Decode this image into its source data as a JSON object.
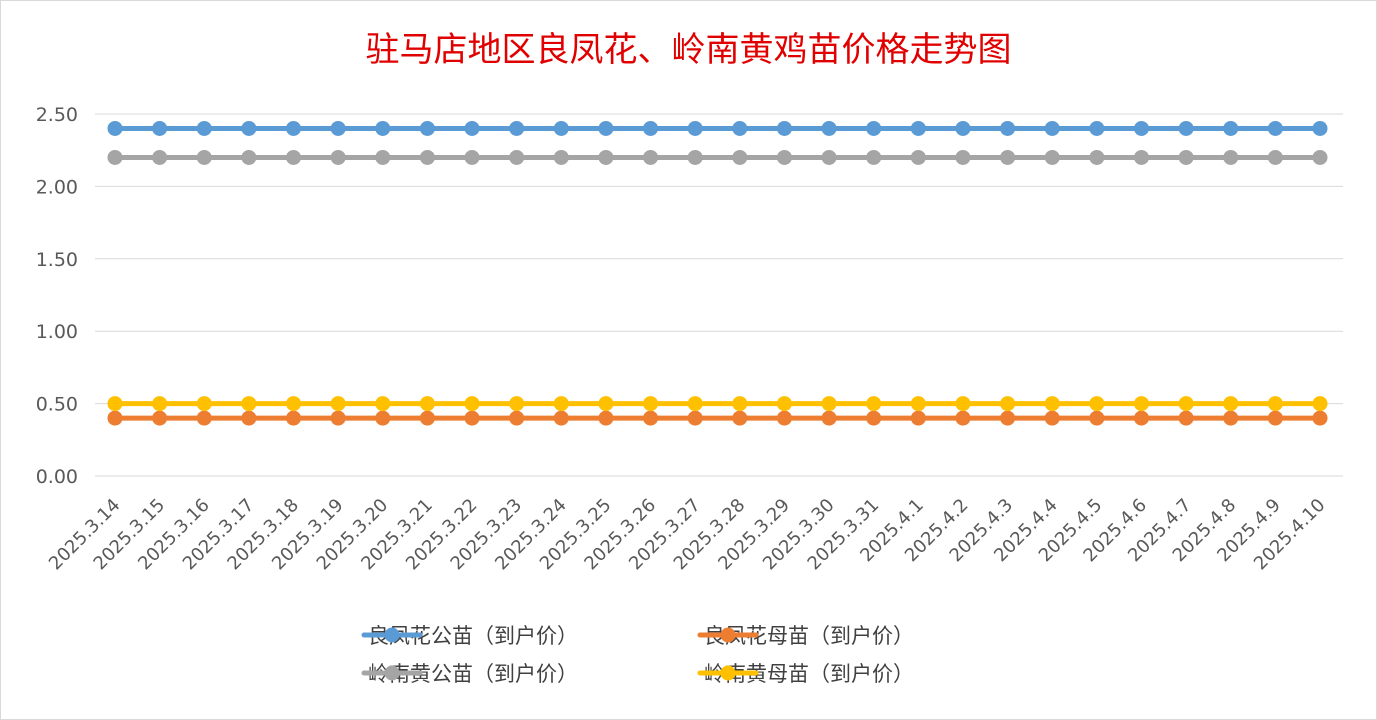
{
  "chart_data": {
    "type": "line",
    "title": "驻马店地区良凤花、岭南黄鸡苗价格走势图",
    "xlabel": "",
    "ylabel": "",
    "ylim": [
      0,
      2.5
    ],
    "yticks": [
      "0.00",
      "0.50",
      "1.00",
      "1.50",
      "2.00",
      "2.50"
    ],
    "grid": true,
    "legend_position": "bottom",
    "categories": [
      "2025.3.14",
      "2025.3.15",
      "2025.3.16",
      "2025.3.17",
      "2025.3.18",
      "2025.3.19",
      "2025.3.20",
      "2025.3.21",
      "2025.3.22",
      "2025.3.23",
      "2025.3.24",
      "2025.3.25",
      "2025.3.26",
      "2025.3.27",
      "2025.3.28",
      "2025.3.29",
      "2025.3.30",
      "2025.3.31",
      "2025.4.1",
      "2025.4.2",
      "2025.4.3",
      "2025.4.4",
      "2025.4.5",
      "2025.4.6",
      "2025.4.7",
      "2025.4.8",
      "2025.4.9",
      "2025.4.10"
    ],
    "series": [
      {
        "name": "良凤花公苗（到户价）",
        "color": "#5b9bd5",
        "values": [
          2.4,
          2.4,
          2.4,
          2.4,
          2.4,
          2.4,
          2.4,
          2.4,
          2.4,
          2.4,
          2.4,
          2.4,
          2.4,
          2.4,
          2.4,
          2.4,
          2.4,
          2.4,
          2.4,
          2.4,
          2.4,
          2.4,
          2.4,
          2.4,
          2.4,
          2.4,
          2.4,
          2.4
        ]
      },
      {
        "name": "良凤花母苗（到户价）",
        "color": "#ed7d31",
        "values": [
          0.4,
          0.4,
          0.4,
          0.4,
          0.4,
          0.4,
          0.4,
          0.4,
          0.4,
          0.4,
          0.4,
          0.4,
          0.4,
          0.4,
          0.4,
          0.4,
          0.4,
          0.4,
          0.4,
          0.4,
          0.4,
          0.4,
          0.4,
          0.4,
          0.4,
          0.4,
          0.4,
          0.4
        ]
      },
      {
        "name": "岭南黄公苗（到户价）",
        "color": "#a5a5a5",
        "values": [
          2.2,
          2.2,
          2.2,
          2.2,
          2.2,
          2.2,
          2.2,
          2.2,
          2.2,
          2.2,
          2.2,
          2.2,
          2.2,
          2.2,
          2.2,
          2.2,
          2.2,
          2.2,
          2.2,
          2.2,
          2.2,
          2.2,
          2.2,
          2.2,
          2.2,
          2.2,
          2.2,
          2.2
        ]
      },
      {
        "name": "岭南黄母苗（到户价）",
        "color": "#ffc000",
        "values": [
          0.5,
          0.5,
          0.5,
          0.5,
          0.5,
          0.5,
          0.5,
          0.5,
          0.5,
          0.5,
          0.5,
          0.5,
          0.5,
          0.5,
          0.5,
          0.5,
          0.5,
          0.5,
          0.5,
          0.5,
          0.5,
          0.5,
          0.5,
          0.5,
          0.5,
          0.5,
          0.5,
          0.5
        ]
      }
    ]
  }
}
